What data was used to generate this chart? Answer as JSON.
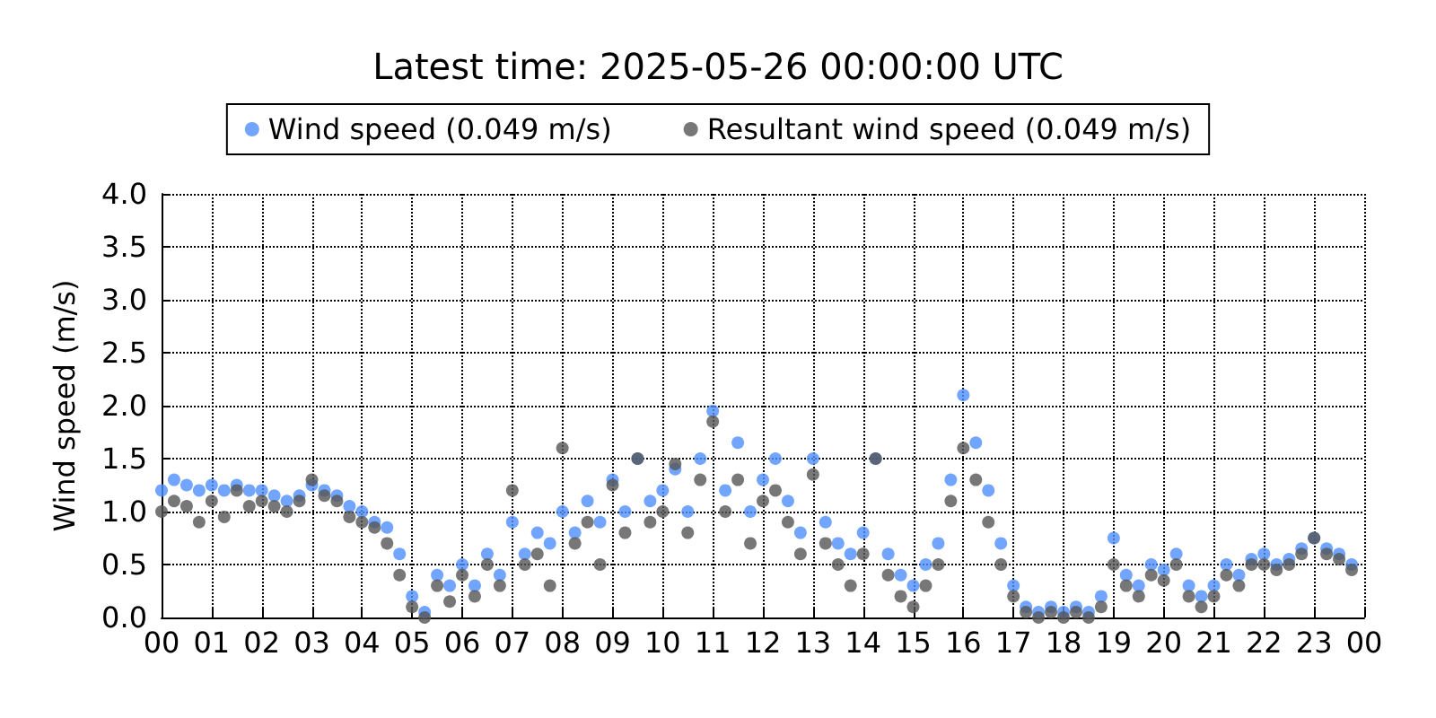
{
  "chart_data": {
    "type": "scatter",
    "title": "Latest time: 2025-05-26 00:00:00 UTC",
    "ylabel": "Wind speed (m/s)",
    "x": [
      0,
      0.25,
      0.5,
      0.75,
      1,
      1.25,
      1.5,
      1.75,
      2,
      2.25,
      2.5,
      2.75,
      3,
      3.25,
      3.5,
      3.75,
      4,
      4.25,
      4.5,
      4.75,
      5,
      5.25,
      5.5,
      5.75,
      6,
      6.25,
      6.5,
      6.75,
      7,
      7.25,
      7.5,
      7.75,
      8,
      8.25,
      8.5,
      8.75,
      9,
      9.25,
      9.5,
      9.75,
      10,
      10.25,
      10.5,
      10.75,
      11,
      11.25,
      11.5,
      11.75,
      12,
      12.25,
      12.5,
      12.75,
      13,
      13.25,
      13.5,
      13.75,
      14,
      14.25,
      14.5,
      14.75,
      15,
      15.25,
      15.5,
      15.75,
      16,
      16.25,
      16.5,
      16.75,
      17,
      17.25,
      17.5,
      17.75,
      18,
      18.25,
      18.5,
      18.75,
      19,
      19.25,
      19.5,
      19.75,
      20,
      20.25,
      20.5,
      20.75,
      21,
      21.25,
      21.5,
      21.75,
      22,
      22.25,
      22.5,
      22.75,
      23,
      23.25,
      23.5,
      23.75
    ],
    "series": [
      {
        "name": "Wind speed (0.049 m/s)",
        "color": "#4d8fff",
        "values": [
          1.2,
          1.3,
          1.25,
          1.2,
          1.25,
          1.2,
          1.25,
          1.2,
          1.2,
          1.15,
          1.1,
          1.15,
          1.25,
          1.2,
          1.15,
          1.05,
          1.0,
          0.9,
          0.85,
          0.6,
          0.2,
          0.05,
          0.4,
          0.3,
          0.5,
          0.3,
          0.6,
          0.4,
          0.9,
          0.6,
          0.8,
          0.7,
          1.0,
          0.8,
          1.1,
          0.9,
          1.3,
          1.0,
          1.5,
          1.1,
          1.2,
          1.4,
          1.0,
          1.5,
          1.95,
          1.2,
          1.65,
          1.0,
          1.3,
          1.5,
          1.1,
          0.8,
          1.5,
          0.9,
          0.7,
          0.6,
          0.8,
          1.5,
          0.6,
          0.4,
          0.3,
          0.5,
          0.7,
          1.3,
          2.1,
          1.65,
          1.2,
          0.7,
          0.3,
          0.1,
          0.05,
          0.1,
          0.05,
          0.1,
          0.05,
          0.2,
          0.75,
          0.4,
          0.3,
          0.5,
          0.45,
          0.6,
          0.3,
          0.2,
          0.3,
          0.5,
          0.4,
          0.55,
          0.6,
          0.5,
          0.55,
          0.65,
          0.75,
          0.65,
          0.6,
          0.5
        ]
      },
      {
        "name": "Resultant wind speed (0.049 m/s)",
        "color": "#555555",
        "values": [
          1.0,
          1.1,
          1.05,
          0.9,
          1.1,
          0.95,
          1.2,
          1.05,
          1.1,
          1.05,
          1.0,
          1.1,
          1.3,
          1.15,
          1.1,
          0.95,
          0.9,
          0.85,
          0.7,
          0.4,
          0.1,
          0.0,
          0.3,
          0.15,
          0.4,
          0.2,
          0.5,
          0.3,
          1.2,
          0.5,
          0.6,
          0.3,
          1.6,
          0.7,
          0.9,
          0.5,
          1.25,
          0.8,
          1.5,
          0.9,
          1.0,
          1.45,
          0.8,
          1.3,
          1.85,
          1.0,
          1.3,
          0.7,
          1.1,
          1.2,
          0.9,
          0.6,
          1.35,
          0.7,
          0.5,
          0.3,
          0.6,
          1.5,
          0.4,
          0.2,
          0.1,
          0.3,
          0.5,
          1.1,
          1.6,
          1.3,
          0.9,
          0.5,
          0.2,
          0.05,
          0.0,
          0.05,
          0.0,
          0.05,
          0.0,
          0.1,
          0.5,
          0.3,
          0.2,
          0.4,
          0.35,
          0.5,
          0.2,
          0.1,
          0.2,
          0.4,
          0.3,
          0.5,
          0.5,
          0.45,
          0.5,
          0.6,
          0.75,
          0.6,
          0.55,
          0.45
        ]
      }
    ],
    "xlim": [
      0,
      24
    ],
    "xticks": [
      {
        "value": 0,
        "label": "00"
      },
      {
        "value": 1,
        "label": "01"
      },
      {
        "value": 2,
        "label": "02"
      },
      {
        "value": 3,
        "label": "03"
      },
      {
        "value": 4,
        "label": "04"
      },
      {
        "value": 5,
        "label": "05"
      },
      {
        "value": 6,
        "label": "06"
      },
      {
        "value": 7,
        "label": "07"
      },
      {
        "value": 8,
        "label": "08"
      },
      {
        "value": 9,
        "label": "09"
      },
      {
        "value": 10,
        "label": "10"
      },
      {
        "value": 11,
        "label": "11"
      },
      {
        "value": 12,
        "label": "12"
      },
      {
        "value": 13,
        "label": "13"
      },
      {
        "value": 14,
        "label": "14"
      },
      {
        "value": 15,
        "label": "15"
      },
      {
        "value": 16,
        "label": "16"
      },
      {
        "value": 17,
        "label": "17"
      },
      {
        "value": 18,
        "label": "18"
      },
      {
        "value": 19,
        "label": "19"
      },
      {
        "value": 20,
        "label": "20"
      },
      {
        "value": 21,
        "label": "21"
      },
      {
        "value": 22,
        "label": "22"
      },
      {
        "value": 23,
        "label": "23"
      },
      {
        "value": 24,
        "label": "00"
      }
    ],
    "ylim": [
      0,
      4
    ],
    "yticks": [
      {
        "value": 0,
        "label": "0.0"
      },
      {
        "value": 0.5,
        "label": "0.5"
      },
      {
        "value": 1,
        "label": "1.0"
      },
      {
        "value": 1.5,
        "label": "1.5"
      },
      {
        "value": 2,
        "label": "2.0"
      },
      {
        "value": 2.5,
        "label": "2.5"
      },
      {
        "value": 3,
        "label": "3.0"
      },
      {
        "value": 3.5,
        "label": "3.5"
      },
      {
        "value": 4,
        "label": "4.0"
      }
    ],
    "grid": true,
    "legend": "top",
    "marker": "circle"
  }
}
